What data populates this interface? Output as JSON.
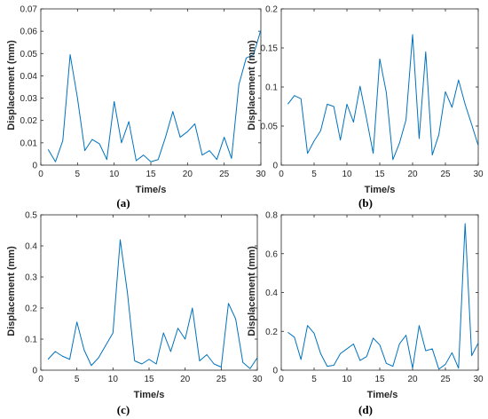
{
  "panel_labels": [
    "(a)",
    "(b)",
    "(c)",
    "(d)"
  ],
  "series_color": "#0072BD",
  "chart_data": [
    {
      "type": "line",
      "xlabel": "Time/s",
      "ylabel": "Displacement (mm)",
      "xlim": [
        0,
        30
      ],
      "ylim": [
        0,
        0.07
      ],
      "xticks": [
        0,
        5,
        10,
        15,
        20,
        25,
        30
      ],
      "yticks": [
        0,
        0.01,
        0.02,
        0.03,
        0.04,
        0.05,
        0.06,
        0.07
      ],
      "grid": false,
      "x": [
        1,
        2,
        3,
        4,
        5,
        6,
        7,
        8,
        9,
        10,
        11,
        12,
        13,
        14,
        15,
        16,
        17,
        18,
        19,
        20,
        21,
        22,
        23,
        24,
        25,
        26,
        27,
        28,
        29,
        30
      ],
      "y": [
        0.007,
        0.0015,
        0.011,
        0.0495,
        0.03,
        0.0065,
        0.0115,
        0.0095,
        0.0025,
        0.0285,
        0.01,
        0.0195,
        0.002,
        0.0045,
        0.0015,
        0.0025,
        0.0125,
        0.024,
        0.0125,
        0.015,
        0.0185,
        0.0045,
        0.0065,
        0.0025,
        0.0125,
        0.003,
        0.036,
        0.048,
        0.0495,
        0.0605
      ]
    },
    {
      "type": "line",
      "xlabel": "Time/s",
      "ylabel": "Displacement (mm)",
      "xlim": [
        0,
        30
      ],
      "ylim": [
        0,
        0.2
      ],
      "xticks": [
        0,
        5,
        10,
        15,
        20,
        25,
        30
      ],
      "yticks": [
        0,
        0.05,
        0.1,
        0.15,
        0.2
      ],
      "grid": false,
      "x": [
        1,
        2,
        3,
        4,
        5,
        6,
        7,
        8,
        9,
        10,
        11,
        12,
        13,
        14,
        15,
        16,
        17,
        18,
        19,
        20,
        21,
        22,
        23,
        24,
        25,
        26,
        27,
        28,
        29,
        30
      ],
      "y": [
        0.078,
        0.089,
        0.085,
        0.015,
        0.031,
        0.044,
        0.078,
        0.075,
        0.032,
        0.078,
        0.055,
        0.101,
        0.059,
        0.015,
        0.136,
        0.093,
        0.007,
        0.028,
        0.058,
        0.167,
        0.034,
        0.145,
        0.013,
        0.039,
        0.094,
        0.074,
        0.109,
        0.078,
        0.052,
        0.025
      ]
    },
    {
      "type": "line",
      "xlabel": "Time/s",
      "ylabel": "Displacement (mm)",
      "xlim": [
        0,
        30
      ],
      "ylim": [
        0,
        0.5
      ],
      "xticks": [
        0,
        5,
        10,
        15,
        20,
        25,
        30
      ],
      "yticks": [
        0,
        0.1,
        0.2,
        0.3,
        0.4,
        0.5
      ],
      "grid": false,
      "x": [
        1,
        2,
        3,
        4,
        5,
        6,
        7,
        8,
        9,
        10,
        11,
        12,
        13,
        14,
        15,
        16,
        17,
        18,
        19,
        20,
        21,
        22,
        23,
        24,
        25,
        26,
        27,
        28,
        29,
        30
      ],
      "y": [
        0.035,
        0.06,
        0.045,
        0.035,
        0.155,
        0.065,
        0.015,
        0.04,
        0.08,
        0.12,
        0.42,
        0.25,
        0.03,
        0.02,
        0.035,
        0.02,
        0.12,
        0.06,
        0.135,
        0.1,
        0.2,
        0.03,
        0.05,
        0.02,
        0.01,
        0.215,
        0.165,
        0.025,
        0.005,
        0.04
      ]
    },
    {
      "type": "line",
      "xlabel": "Time/s",
      "ylabel": "Displacement (mm)",
      "xlim": [
        0,
        30
      ],
      "ylim": [
        0,
        0.8
      ],
      "xticks": [
        0,
        5,
        10,
        15,
        20,
        25,
        30
      ],
      "yticks": [
        0,
        0.2,
        0.4,
        0.6,
        0.8
      ],
      "grid": false,
      "x": [
        1,
        2,
        3,
        4,
        5,
        6,
        7,
        8,
        9,
        10,
        11,
        12,
        13,
        14,
        15,
        16,
        17,
        18,
        19,
        20,
        21,
        22,
        23,
        24,
        25,
        26,
        27,
        28,
        29,
        30
      ],
      "y": [
        0.195,
        0.17,
        0.055,
        0.23,
        0.19,
        0.085,
        0.02,
        0.025,
        0.085,
        0.11,
        0.135,
        0.05,
        0.07,
        0.165,
        0.13,
        0.035,
        0.02,
        0.135,
        0.18,
        0.01,
        0.23,
        0.1,
        0.11,
        0.005,
        0.03,
        0.09,
        0.01,
        0.755,
        0.075,
        0.14
      ]
    }
  ]
}
